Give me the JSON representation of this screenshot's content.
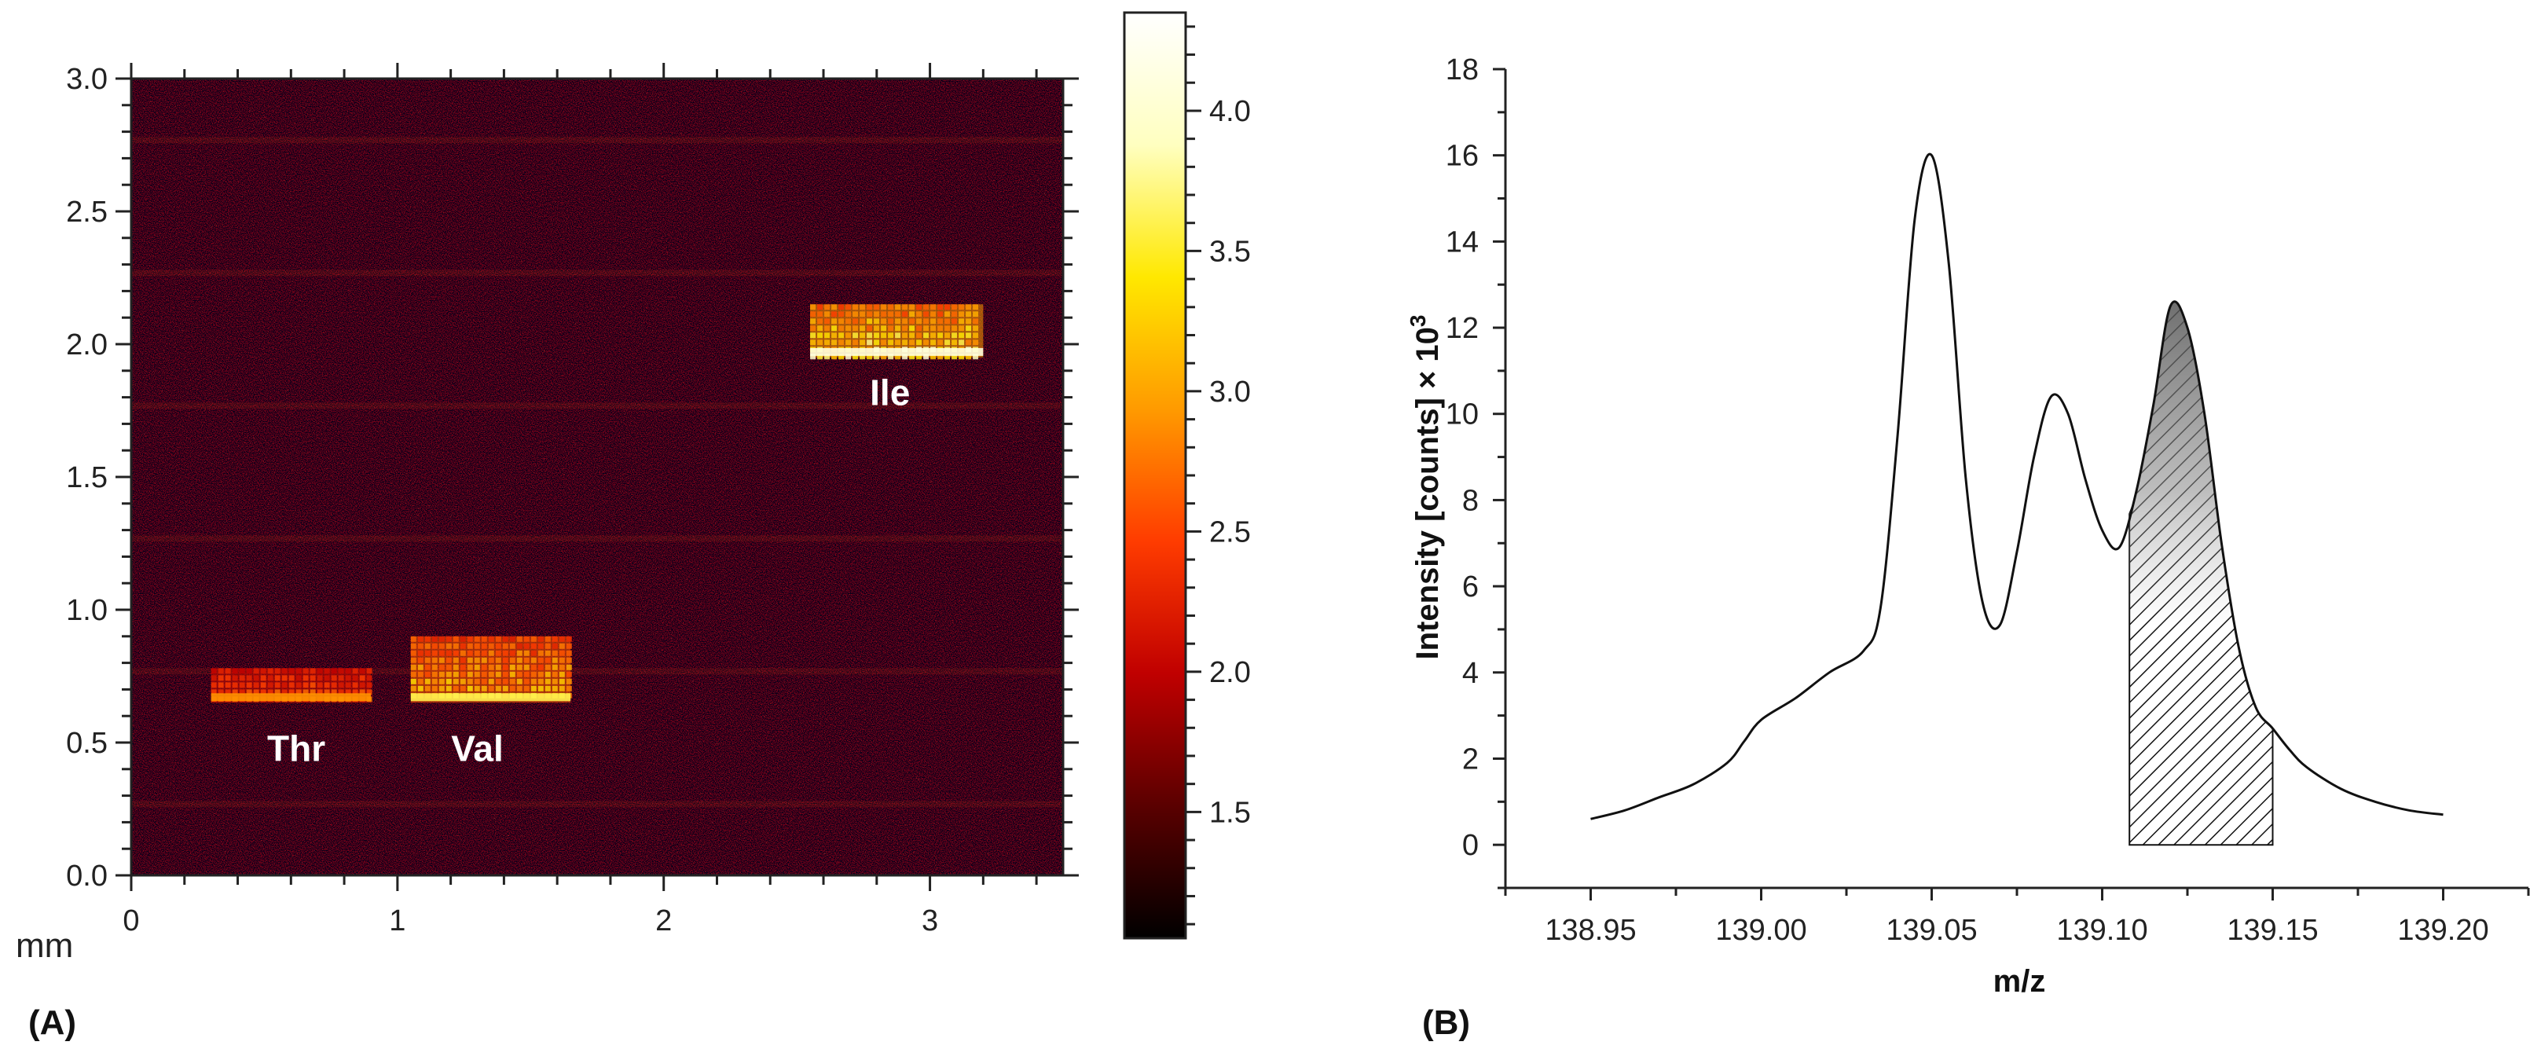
{
  "chart_data": [
    {
      "type": "heatmap",
      "panel_label": "(A)",
      "title": "",
      "xlabel": "mm",
      "ylabel": "",
      "xlim": [
        0,
        3.5
      ],
      "ylim": [
        0,
        3.0
      ],
      "x_ticks": [
        0,
        1,
        2,
        3
      ],
      "x_tick_labels": [
        "0",
        "1",
        "2",
        "3"
      ],
      "y_ticks": [
        0.0,
        0.5,
        1.0,
        1.5,
        2.0,
        2.5,
        3.0
      ],
      "y_tick_labels": [
        "0.0",
        "0.5",
        "1.0",
        "1.5",
        "2.0",
        "2.5",
        "3.0"
      ],
      "colorbar": {
        "range": [
          1.05,
          4.35
        ],
        "ticks": [
          1.5,
          2.0,
          2.5,
          3.0,
          3.5,
          4.0
        ],
        "tick_labels": [
          "1.5",
          "2.0",
          "2.5",
          "3.0",
          "3.5",
          "4.0"
        ],
        "colormap": [
          "#000000",
          "#5a0000",
          "#c00000",
          "#ff3c00",
          "#ff9a00",
          "#ffe800",
          "#ffffc0",
          "#ffffff"
        ]
      },
      "noise_level": [
        1.1,
        2.3
      ],
      "bright_regions": [
        {
          "label": "Thr",
          "x": [
            0.3,
            0.9
          ],
          "y": [
            0.65,
            0.78
          ],
          "intensity": 2.9
        },
        {
          "label": "Val",
          "x": [
            1.05,
            1.65
          ],
          "y": [
            0.65,
            0.9
          ],
          "intensity": 3.6
        },
        {
          "label": "Ile",
          "x": [
            2.55,
            3.2
          ],
          "y": [
            1.95,
            2.15
          ],
          "intensity": 4.1
        }
      ],
      "annotations": [
        "Thr",
        "Val",
        "Ile"
      ]
    },
    {
      "type": "line",
      "panel_label": "(B)",
      "title": "",
      "xlabel": "m/z",
      "ylabel": "Intensity [counts] × 10",
      "ylabel_superscript": "3",
      "xlim": [
        138.925,
        139.225
      ],
      "ylim": [
        -1,
        18
      ],
      "x_ticks": [
        138.95,
        139.0,
        139.05,
        139.1,
        139.15,
        139.2
      ],
      "x_tick_labels": [
        "138.95",
        "139.00",
        "139.05",
        "139.10",
        "139.15",
        "139.20"
      ],
      "y_ticks": [
        0,
        2,
        4,
        6,
        8,
        10,
        12,
        14,
        16,
        18
      ],
      "y_tick_labels": [
        "0",
        "2",
        "4",
        "6",
        "8",
        "10",
        "12",
        "14",
        "16",
        "18"
      ],
      "series": [
        {
          "name": "spectrum",
          "x": [
            138.95,
            138.96,
            138.97,
            138.98,
            138.99,
            138.995,
            139.0,
            139.01,
            139.02,
            139.03,
            139.035,
            139.04,
            139.045,
            139.05,
            139.055,
            139.06,
            139.065,
            139.07,
            139.075,
            139.08,
            139.085,
            139.09,
            139.095,
            139.1,
            139.105,
            139.11,
            139.115,
            139.12,
            139.125,
            139.13,
            139.135,
            139.14,
            139.145,
            139.15,
            139.155,
            139.16,
            139.17,
            139.18,
            139.19,
            139.2
          ],
          "y": [
            0.6,
            0.8,
            1.1,
            1.4,
            1.9,
            2.4,
            2.9,
            3.4,
            4.0,
            4.5,
            5.5,
            9.5,
            14.5,
            16.0,
            13.5,
            8.5,
            5.6,
            5.1,
            6.8,
            9.0,
            10.4,
            10.0,
            8.5,
            7.3,
            6.9,
            8.2,
            10.2,
            12.5,
            12.0,
            10.0,
            7.0,
            4.6,
            3.2,
            2.7,
            2.2,
            1.8,
            1.3,
            1.0,
            0.8,
            0.7
          ]
        }
      ],
      "shaded_region": {
        "x": [
          139.108,
          139.15
        ],
        "pattern": "hatched"
      }
    }
  ]
}
